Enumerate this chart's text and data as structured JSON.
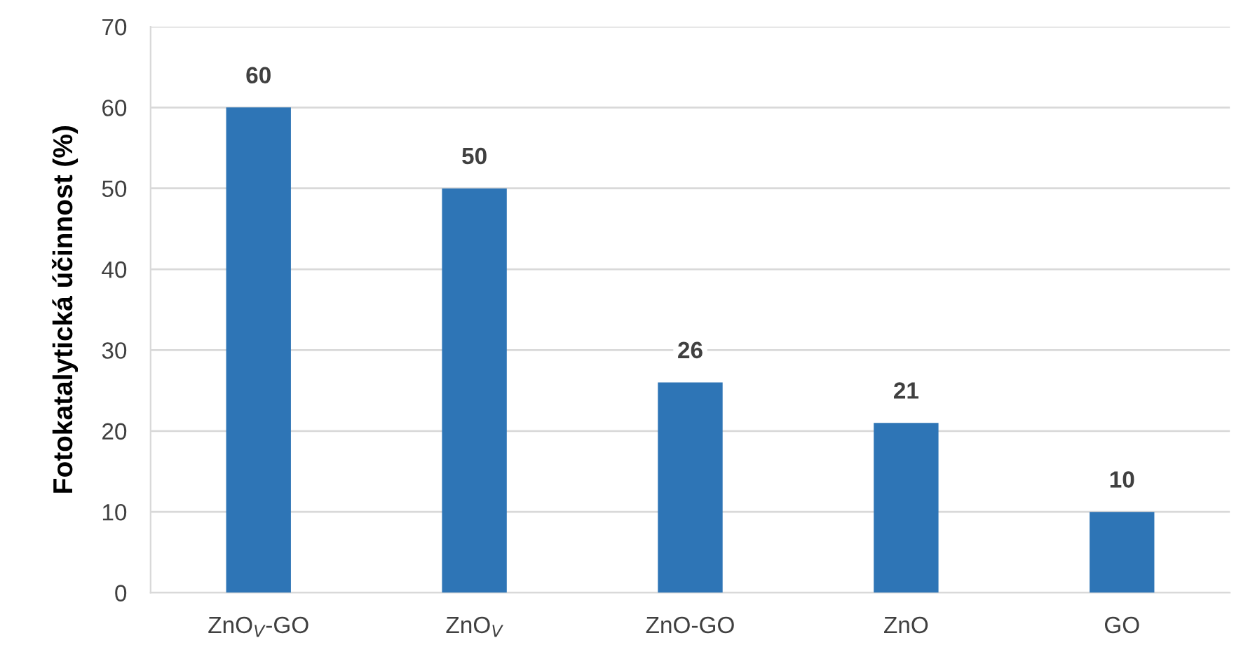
{
  "chart_data": {
    "type": "bar",
    "ylabel": "Fotokatalytická účinnost (%)",
    "categories": [
      "ZnO$_{V}$-GO",
      "ZnO$_{V}$",
      "ZnO-GO",
      "ZnO",
      "GO"
    ],
    "values": [
      60,
      50,
      26,
      21,
      10
    ],
    "color": "#2e75b6",
    "ylim": [
      0,
      70
    ],
    "yticks": [
      0,
      10,
      20,
      30,
      40,
      50,
      60,
      70
    ],
    "grid": "y",
    "data_labels": true,
    "legend": false
  }
}
